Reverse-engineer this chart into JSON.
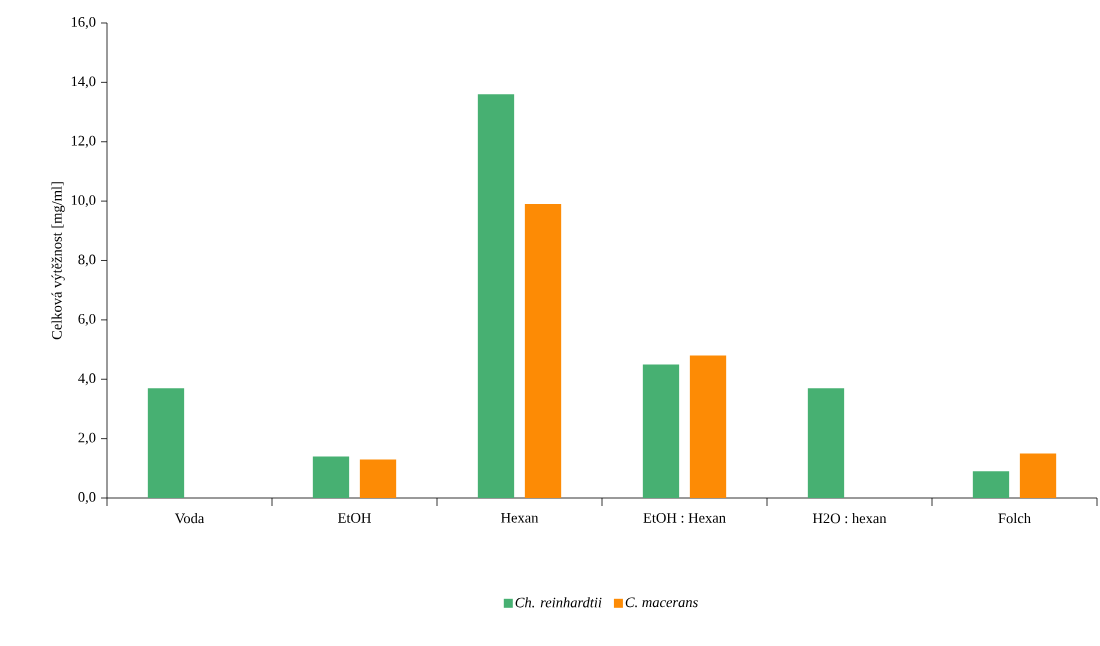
{
  "chart_data": {
    "type": "bar",
    "ylabel": "Celková výtěžnost [mg/ml]",
    "categories": [
      "Voda",
      "EtOH",
      "Hexan",
      "EtOH : Hexan",
      "H2O : hexan",
      "Folch"
    ],
    "series": [
      {
        "name": "Ch. reinhardtii",
        "color": "#47b072",
        "values": [
          3.7,
          1.4,
          13.6,
          4.5,
          3.7,
          0.9
        ]
      },
      {
        "name": "C. macerans",
        "color": "#fd8b05",
        "values": [
          null,
          1.3,
          9.9,
          4.8,
          null,
          1.5
        ]
      }
    ],
    "ylim": [
      0,
      16
    ],
    "yticks": [
      {
        "value": 0,
        "label": "0,0"
      },
      {
        "value": 2,
        "label": "2,0"
      },
      {
        "value": 4,
        "label": "4,0"
      },
      {
        "value": 6,
        "label": "6,0"
      },
      {
        "value": 8,
        "label": "8,0"
      },
      {
        "value": 10,
        "label": "10,0"
      },
      {
        "value": 12,
        "label": "12,0"
      },
      {
        "value": 14,
        "label": "14,0"
      },
      {
        "value": 16,
        "label": "16,0"
      }
    ],
    "legend": "bottom"
  }
}
